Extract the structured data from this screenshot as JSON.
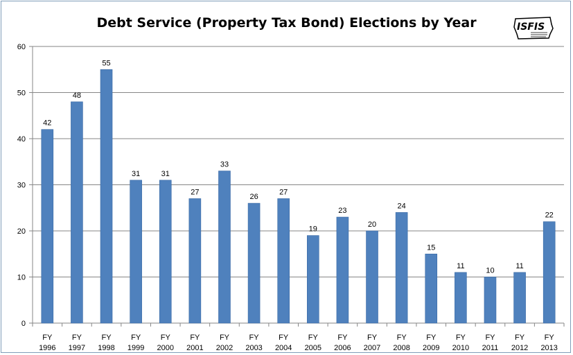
{
  "logo": {
    "text": "ISFIS",
    "icon": "iowa-state-outline-logo"
  },
  "colors": {
    "bar": "#4f81bd",
    "bar_edge": "#3a6aa5",
    "axis": "#868686",
    "grid": "#868686"
  },
  "chart_data": {
    "type": "bar",
    "title": "Debt Service (Property Tax Bond) Elections by Year",
    "xlabel": "",
    "ylabel": "",
    "ylim": [
      0,
      60
    ],
    "yticks": [
      0,
      10,
      20,
      30,
      40,
      50,
      60
    ],
    "grid": true,
    "categories": [
      [
        "FY",
        "1996"
      ],
      [
        "FY",
        "1997"
      ],
      [
        "FY",
        "1998"
      ],
      [
        "FY",
        "1999"
      ],
      [
        "FY",
        "2000"
      ],
      [
        "FY",
        "2001"
      ],
      [
        "FY",
        "2002"
      ],
      [
        "FY",
        "2003"
      ],
      [
        "FY",
        "2004"
      ],
      [
        "FY",
        "2005"
      ],
      [
        "FY",
        "2006"
      ],
      [
        "FY",
        "2007"
      ],
      [
        "FY",
        "2008"
      ],
      [
        "FY",
        "2009"
      ],
      [
        "FY",
        "2010"
      ],
      [
        "FY",
        "2011"
      ],
      [
        "FY",
        "2012"
      ],
      [
        "FY",
        "2013"
      ]
    ],
    "values": [
      42,
      48,
      55,
      31,
      31,
      27,
      33,
      26,
      27,
      19,
      23,
      20,
      24,
      15,
      11,
      10,
      11,
      22
    ],
    "data_labels": true
  }
}
